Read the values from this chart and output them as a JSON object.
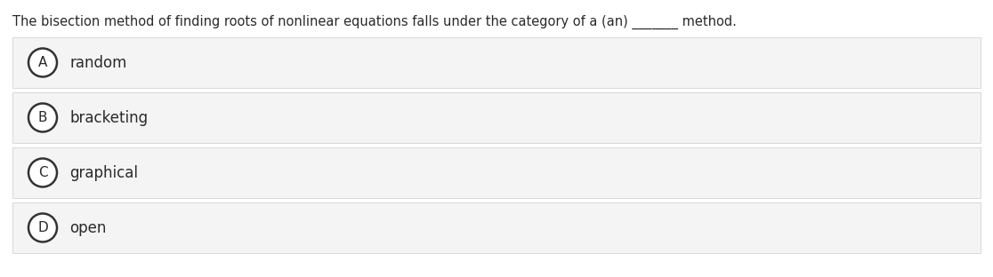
{
  "question": "The bisection method of finding roots of nonlinear equations falls under the category of a (an) _______ method.",
  "options": [
    {
      "label": "A",
      "text": "random"
    },
    {
      "label": "B",
      "text": "bracketing"
    },
    {
      "label": "C",
      "text": "graphical"
    },
    {
      "label": "D",
      "text": "open"
    }
  ],
  "bg_color": "#ffffff",
  "option_bg_color": "#f4f4f4",
  "option_border_color": "#d8d8d8",
  "text_color": "#2a2a2a",
  "circle_edge_color": "#333333",
  "circle_face_color": "#ffffff",
  "question_fontsize": 10.5,
  "option_fontsize": 12,
  "label_fontsize": 11,
  "fig_width": 11.16,
  "fig_height": 3.12,
  "dpi": 100
}
